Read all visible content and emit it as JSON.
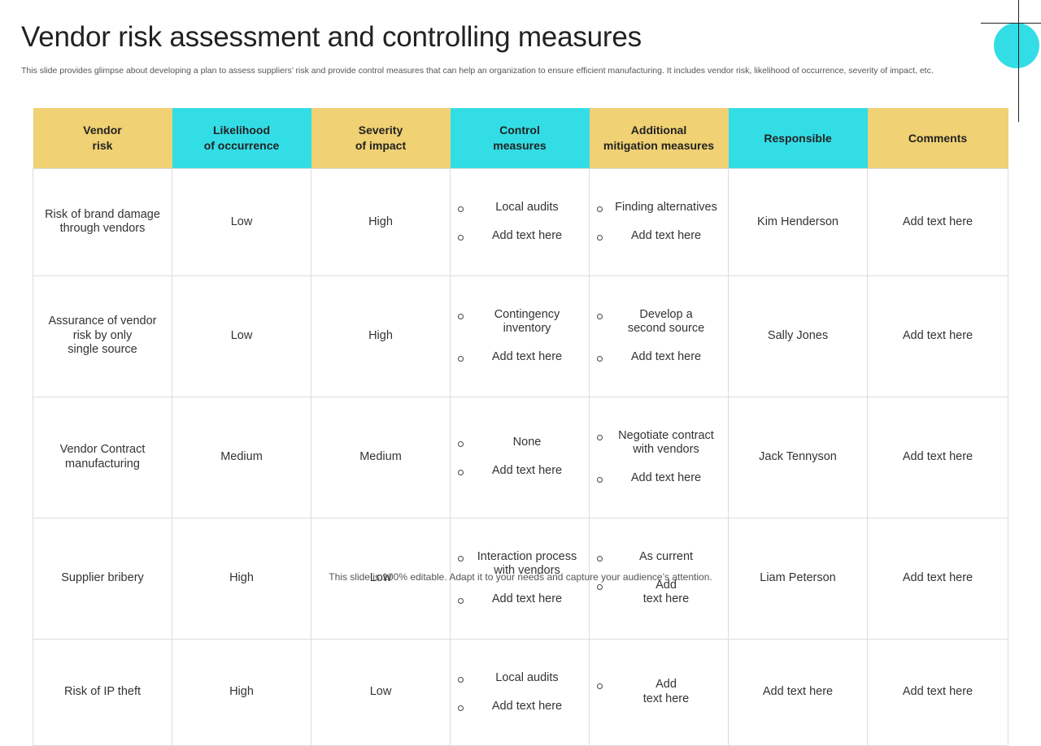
{
  "slide": {
    "title": "Vendor risk assessment and controlling measures",
    "subtitle": "This slide provides glimpse about developing a plan to assess suppliers’ risk and provide control measures that can help an organization to ensure efficient manufacturing. It includes vendor risk, likelihood of occurrence, severity of impact, etc.",
    "footer": "This slide is 100% editable. Adapt it to your needs and capture your audience’s attention."
  },
  "colors": {
    "yellow": "#f0d173",
    "cyan": "#33dde6"
  },
  "table": {
    "headers": [
      "Vendor\nrisk",
      "Likelihood\nof occurrence",
      "Severity\nof impact",
      "Control\nmeasures",
      "Additional\nmitigation measures",
      "Responsible",
      "Comments"
    ],
    "rows": [
      {
        "risk": "Risk of brand damage\nthrough vendors",
        "likelihood": "Low",
        "severity": "High",
        "control": [
          "Local audits",
          "Add text here"
        ],
        "mitigation": [
          "Finding alternatives",
          "Add text here"
        ],
        "responsible": "Kim Henderson",
        "comments": "Add text here"
      },
      {
        "risk": "Assurance of vendor\nrisk by only\nsingle source",
        "likelihood": "Low",
        "severity": "High",
        "control": [
          "Contingency\ninventory",
          "Add text here"
        ],
        "mitigation": [
          "Develop a\nsecond source",
          "Add text here"
        ],
        "responsible": "Sally Jones",
        "comments": "Add text here"
      },
      {
        "risk": "Vendor Contract\nmanufacturing",
        "likelihood": "Medium",
        "severity": "Medium",
        "control": [
          "None",
          "Add text here"
        ],
        "mitigation": [
          "Negotiate contract\nwith vendors",
          "Add text here"
        ],
        "responsible": "Jack Tennyson",
        "comments": "Add text here"
      },
      {
        "risk": "Supplier bribery",
        "likelihood": "High",
        "severity": "Low",
        "control": [
          "Interaction process\nwith vendors",
          "Add text here"
        ],
        "mitigation": [
          "As current",
          "Add\ntext here"
        ],
        "responsible": "Liam Peterson",
        "comments": "Add text here"
      },
      {
        "risk": "Risk of IP theft",
        "likelihood": "High",
        "severity": "Low",
        "control": [
          "Local audits",
          "Add text here"
        ],
        "mitigation": [
          "Add\ntext here"
        ],
        "responsible": "Add text here",
        "comments": "Add text here"
      }
    ]
  }
}
